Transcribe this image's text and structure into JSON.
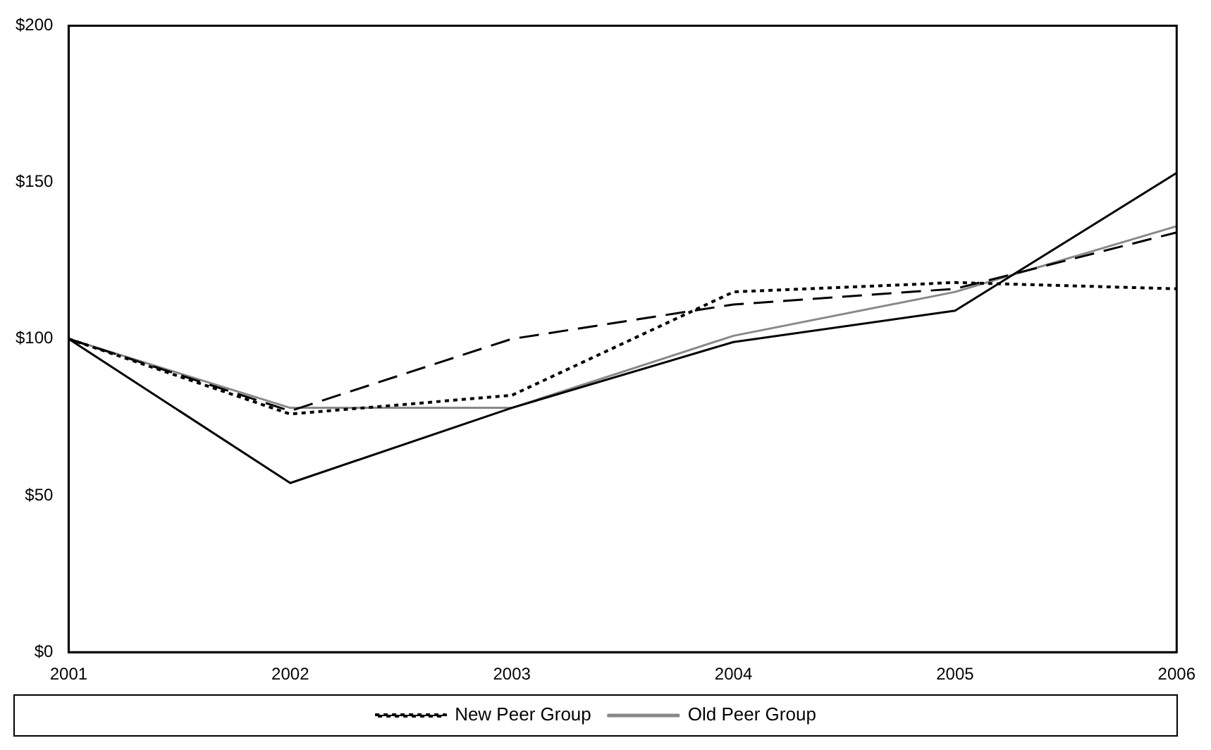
{
  "chart_data": {
    "type": "line",
    "categories": [
      "2001",
      "2002",
      "2003",
      "2004",
      "2005",
      "2006"
    ],
    "series": [
      {
        "color": "#000000",
        "line_style": "solid",
        "values": [
          100,
          54,
          78,
          99,
          109,
          153
        ]
      },
      {
        "color": "#000000",
        "line_style": "dashed",
        "values": [
          100,
          77,
          100,
          111,
          116,
          134
        ]
      },
      {
        "name": "New Peer Group",
        "color": "#000000",
        "line_style": "dotted",
        "values": [
          100,
          76,
          82,
          115,
          118,
          116
        ]
      },
      {
        "name": "Old Peer Group",
        "color": "#888888",
        "line_style": "solid",
        "values": [
          100,
          78,
          78,
          101,
          115,
          136
        ]
      }
    ],
    "ylim": [
      0,
      200
    ],
    "yticks": [
      {
        "value": 0,
        "label": "$0"
      },
      {
        "value": 50,
        "label": "$50"
      },
      {
        "value": 100,
        "label": "$100"
      },
      {
        "value": 150,
        "label": "$150"
      },
      {
        "value": 200,
        "label": "$200"
      }
    ],
    "grid": false,
    "legend": "bottom",
    "marker": "none"
  }
}
